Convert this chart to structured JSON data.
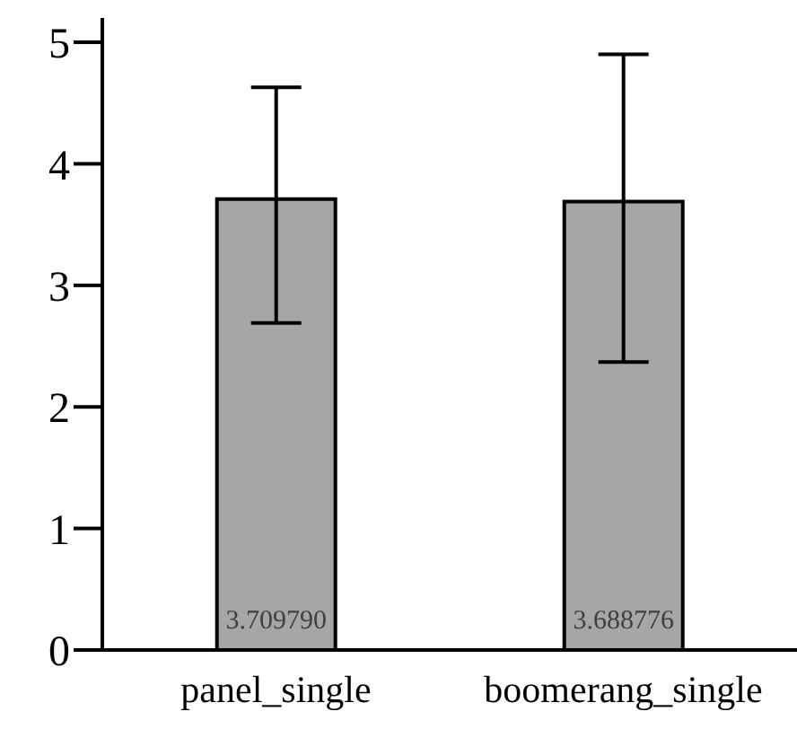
{
  "chart_data": {
    "type": "bar",
    "categories": [
      "panel_single",
      "boomerang_single"
    ],
    "values": [
      3.70979,
      3.688776
    ],
    "value_labels": [
      "3.709790",
      "3.688776"
    ],
    "errors": [
      [
        2.69,
        4.63
      ],
      [
        2.37,
        4.9
      ]
    ],
    "color": "#a6a6a6",
    "ylim": [
      0,
      5.2
    ],
    "yticks": [
      0,
      1,
      2,
      3,
      4,
      5
    ],
    "grid": false,
    "legend": false
  }
}
